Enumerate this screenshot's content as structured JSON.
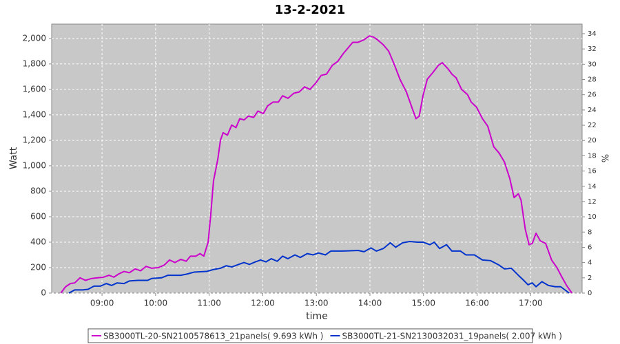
{
  "chart_data": {
    "type": "line",
    "title": "13-2-2021",
    "x_label": "time",
    "y_label": "Watt",
    "y2_label": "%",
    "xlim": [
      8.06,
      17.96
    ],
    "xticks": [
      {
        "value": 9,
        "label": "09:00"
      },
      {
        "value": 10,
        "label": "10:00"
      },
      {
        "value": 11,
        "label": "11:00"
      },
      {
        "value": 12,
        "label": "12:00"
      },
      {
        "value": 13,
        "label": "13:00"
      },
      {
        "value": 14,
        "label": "14:00"
      },
      {
        "value": 15,
        "label": "15:00"
      },
      {
        "value": 16,
        "label": "16:00"
      },
      {
        "value": 17,
        "label": "17:00"
      }
    ],
    "ylim": [
      0,
      2113
    ],
    "yticks": [
      0,
      200,
      400,
      600,
      800,
      {
        "value": 1000,
        "label": "1,000"
      },
      {
        "value": 1200,
        "label": "1,200"
      },
      {
        "value": 1400,
        "label": "1,400"
      },
      {
        "value": 1600,
        "label": "1,600"
      },
      {
        "value": 1800,
        "label": "1,800"
      },
      {
        "value": 2000,
        "label": "2,000"
      }
    ],
    "y2lim": [
      0,
      35.26
    ],
    "y2ticks": [
      0,
      2,
      4,
      6,
      8,
      10,
      12,
      14,
      16,
      18,
      20,
      22,
      24,
      26,
      28,
      30,
      32,
      34
    ],
    "grid": true,
    "series": [
      {
        "name": "SB3000TL-20-SN2100578613_21panels( 9.693 kWh )",
        "color": "#cc00cc",
        "x": [
          8.23,
          8.32,
          8.41,
          8.49,
          8.59,
          8.69,
          8.81,
          8.92,
          9.03,
          9.13,
          9.22,
          9.31,
          9.41,
          9.51,
          9.62,
          9.72,
          9.82,
          9.93,
          10.05,
          10.16,
          10.26,
          10.36,
          10.47,
          10.57,
          10.65,
          10.75,
          10.83,
          10.9,
          10.98,
          11.03,
          11.08,
          11.16,
          11.21,
          11.26,
          11.34,
          11.42,
          11.5,
          11.57,
          11.65,
          11.73,
          11.83,
          11.91,
          12.01,
          12.09,
          12.19,
          12.29,
          12.37,
          12.47,
          12.58,
          12.68,
          12.78,
          12.88,
          12.99,
          13.09,
          13.19,
          13.3,
          13.4,
          13.5,
          13.6,
          13.68,
          13.78,
          13.89,
          13.99,
          14.07,
          14.14,
          14.25,
          14.35,
          14.45,
          14.56,
          14.68,
          14.79,
          14.86,
          14.92,
          14.99,
          15.07,
          15.17,
          15.28,
          15.35,
          15.46,
          15.53,
          15.61,
          15.71,
          15.82,
          15.89,
          15.99,
          16.1,
          16.2,
          16.31,
          16.41,
          16.51,
          16.61,
          16.69,
          16.77,
          16.82,
          16.9,
          16.97,
          17.03,
          17.1,
          17.18,
          17.28,
          17.39,
          17.49,
          17.59,
          17.67,
          17.77
        ],
        "values": [
          0,
          50,
          75,
          80,
          120,
          100,
          115,
          120,
          125,
          140,
          125,
          150,
          170,
          160,
          190,
          175,
          210,
          195,
          200,
          220,
          260,
          240,
          265,
          250,
          290,
          290,
          310,
          290,
          400,
          620,
          880,
          1050,
          1200,
          1260,
          1240,
          1320,
          1300,
          1370,
          1360,
          1390,
          1380,
          1430,
          1410,
          1470,
          1500,
          1500,
          1550,
          1530,
          1570,
          1580,
          1620,
          1600,
          1650,
          1710,
          1720,
          1790,
          1820,
          1880,
          1930,
          1970,
          1970,
          1990,
          2020,
          2010,
          1990,
          1950,
          1900,
          1800,
          1680,
          1580,
          1450,
          1370,
          1390,
          1550,
          1680,
          1730,
          1790,
          1810,
          1760,
          1720,
          1690,
          1600,
          1560,
          1500,
          1460,
          1370,
          1310,
          1150,
          1100,
          1030,
          900,
          750,
          780,
          730,
          500,
          380,
          390,
          470,
          410,
          390,
          260,
          200,
          120,
          60,
          0
        ]
      },
      {
        "name": "SB3000TL-21-SN2130032031_19panels( 2.007 kWh )",
        "color": "#0033cc",
        "x": [
          8.38,
          8.49,
          8.64,
          8.74,
          8.85,
          8.97,
          9.08,
          9.18,
          9.28,
          9.41,
          9.51,
          9.67,
          9.85,
          9.93,
          10.11,
          10.23,
          10.47,
          10.59,
          10.72,
          10.95,
          11.08,
          11.21,
          11.32,
          11.42,
          11.55,
          11.65,
          11.75,
          11.86,
          11.96,
          12.06,
          12.16,
          12.27,
          12.37,
          12.47,
          12.6,
          12.7,
          12.83,
          12.94,
          13.04,
          13.17,
          13.27,
          13.48,
          13.78,
          13.89,
          14.02,
          14.12,
          14.25,
          14.38,
          14.48,
          14.61,
          14.74,
          14.89,
          14.99,
          15.12,
          15.2,
          15.3,
          15.43,
          15.53,
          15.69,
          15.79,
          15.95,
          16.1,
          16.25,
          16.41,
          16.51,
          16.64,
          16.77,
          16.87,
          16.95,
          17.03,
          17.1,
          17.21,
          17.33,
          17.46,
          17.56,
          17.72
        ],
        "values": [
          0,
          25,
          25,
          30,
          55,
          55,
          75,
          60,
          80,
          75,
          95,
          100,
          100,
          115,
          120,
          140,
          140,
          150,
          165,
          170,
          185,
          195,
          215,
          205,
          225,
          240,
          225,
          245,
          260,
          245,
          270,
          250,
          290,
          270,
          300,
          280,
          310,
          300,
          315,
          300,
          330,
          330,
          335,
          325,
          355,
          330,
          350,
          395,
          360,
          395,
          405,
          400,
          400,
          380,
          400,
          350,
          380,
          330,
          330,
          300,
          300,
          260,
          255,
          220,
          190,
          195,
          140,
          100,
          65,
          80,
          50,
          90,
          60,
          50,
          50,
          0
        ]
      }
    ]
  }
}
